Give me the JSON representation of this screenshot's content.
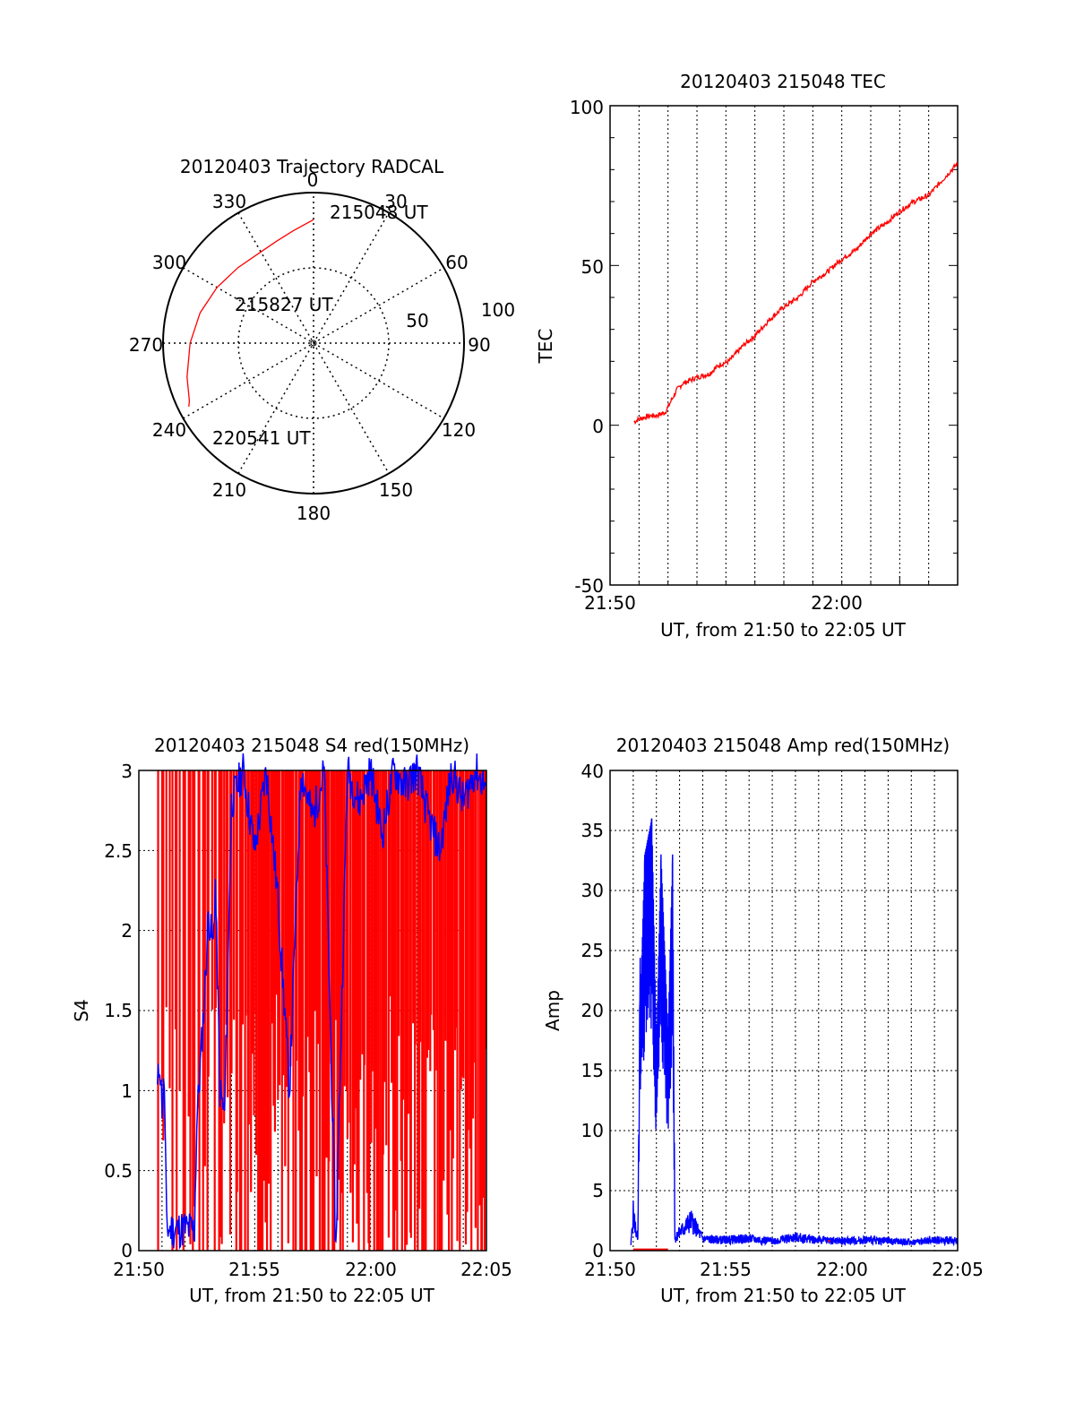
{
  "chart_data": [
    {
      "type": "polar",
      "title": "20120403 Trajectory RADCAL",
      "angle_labels": [
        "0",
        "30",
        "60",
        "90",
        "120",
        "150",
        "180",
        "210",
        "240",
        "270",
        "300",
        "330"
      ],
      "radial_labels": [
        "50",
        "100"
      ],
      "series": [
        {
          "color": "#ff0000",
          "points": [
            {
              "azimuth": 0,
              "zenith": 82
            },
            {
              "azimuth": 350,
              "zenith": 76
            },
            {
              "azimuth": 340,
              "zenith": 72
            },
            {
              "azimuth": 330,
              "zenith": 70
            },
            {
              "azimuth": 315,
              "zenith": 71
            },
            {
              "azimuth": 300,
              "zenith": 74
            },
            {
              "azimuth": 285,
              "zenith": 78
            },
            {
              "azimuth": 270,
              "zenith": 82
            },
            {
              "azimuth": 255,
              "zenith": 87
            },
            {
              "azimuth": 245,
              "zenith": 91
            },
            {
              "azimuth": 243,
              "zenith": 93
            }
          ]
        }
      ],
      "annotations": [
        {
          "text": "215048 UT",
          "azimuth": 17,
          "zenith": 82
        },
        {
          "text": "215827 UT",
          "azimuth": 318,
          "zenith": 30
        },
        {
          "text": "220541 UT",
          "azimuth": 225,
          "zenith": 80
        }
      ]
    },
    {
      "type": "line",
      "title": "20120403 215048 TEC",
      "xlabel": "UT, from 21:50 to 22:05 UT",
      "ylabel": "TEC",
      "x_ticklabels": [
        "21:50",
        "22:00"
      ],
      "y_ticklabels": [
        "-50",
        "0",
        "50",
        "100"
      ],
      "xlim_minutes": [
        0,
        12
      ],
      "ylim": [
        -50,
        100
      ],
      "grid": "vertical-dotted",
      "series": [
        {
          "color": "#ff0000",
          "x_minutes": [
            0.83,
            1.0,
            1.4,
            1.6,
            1.9,
            2.3,
            2.5,
            3.0,
            3.4,
            3.8,
            4.1,
            4.6,
            5.0,
            5.5,
            6.0,
            6.5,
            7.0,
            7.5,
            8.0,
            8.5,
            9.0,
            9.5,
            10.0,
            10.5,
            11.0,
            11.5,
            12.0
          ],
          "values": [
            1,
            2,
            3,
            3,
            4,
            11,
            13,
            15,
            16,
            19,
            20,
            25,
            28,
            33,
            37,
            40,
            45,
            48,
            52,
            55,
            60,
            63,
            67,
            70,
            72,
            77,
            82
          ]
        }
      ]
    },
    {
      "type": "line",
      "title": "20120403 215048 S4 red(150MHz)",
      "xlabel": "UT, from 21:50 to 22:05 UT",
      "ylabel": "S4",
      "x_ticklabels": [
        "21:50",
        "21:55",
        "22:00",
        "22:05"
      ],
      "y_ticklabels": [
        "0",
        "0.5",
        "1",
        "1.5",
        "2",
        "2.5",
        "3"
      ],
      "xlim_minutes": [
        0,
        15
      ],
      "ylim": [
        0,
        3
      ],
      "grid": "dotted",
      "series": [
        {
          "color": "#0000ff",
          "x_minutes": [
            0.8,
            0.9,
            1.0,
            1.1,
            1.2,
            1.5,
            2.0,
            2.4,
            2.5,
            2.8,
            3.0,
            3.2,
            3.3,
            3.5,
            3.7,
            4.0,
            4.5,
            5.0,
            5.5,
            6.0,
            6.5,
            7.0,
            7.5,
            8.0,
            8.5,
            9.0,
            9.5,
            10.0,
            10.5,
            11.0,
            11.5,
            12.0,
            12.5,
            13.0,
            13.5,
            14.0,
            14.5,
            15.0
          ],
          "values": [
            1.0,
            1.2,
            0.9,
            1.05,
            0.14,
            0.13,
            0.14,
            0.13,
            0.8,
            1.5,
            2.1,
            1.9,
            2.3,
            1.0,
            0.85,
            2.8,
            3.0,
            2.5,
            3.0,
            2.2,
            1.0,
            3.0,
            2.7,
            3.0,
            0.0,
            3.0,
            2.8,
            3.0,
            2.6,
            3.0,
            2.9,
            3.0,
            2.7,
            2.5,
            3.0,
            2.8,
            3.0,
            2.9
          ]
        },
        {
          "color": "#ff0000",
          "x_minutes": [
            0.8,
            1.5,
            2.2,
            2.8,
            3.4,
            3.9,
            4.4,
            4.8,
            5.2,
            5.6,
            6.0,
            6.4,
            6.8,
            7.2,
            7.6,
            8.0,
            8.4,
            8.8,
            9.2,
            9.6,
            10.0,
            10.4,
            10.8,
            11.2,
            11.6,
            12.0,
            12.4,
            12.8,
            13.2,
            13.6,
            14.0,
            14.4,
            14.8
          ],
          "values": [
            3.0,
            3.0,
            3.0,
            3.0,
            3.0,
            3.0,
            3.0,
            3.0,
            3.0,
            3.0,
            3.0,
            3.0,
            3.0,
            3.0,
            3.0,
            3.0,
            3.0,
            3.0,
            3.0,
            3.0,
            3.0,
            3.0,
            3.0,
            3.0,
            3.0,
            3.0,
            3.0,
            3.0,
            3.0,
            3.0,
            3.0,
            3.0,
            3.0
          ]
        }
      ]
    },
    {
      "type": "line",
      "title": "20120403 215048 Amp red(150MHz)",
      "xlabel": "UT, from 21:50 to 22:05 UT",
      "ylabel": "Amp",
      "x_ticklabels": [
        "21:50",
        "21:55",
        "22:00",
        "22:05"
      ],
      "y_ticklabels": [
        "0",
        "5",
        "10",
        "15",
        "20",
        "25",
        "30",
        "35",
        "40"
      ],
      "xlim_minutes": [
        0,
        15
      ],
      "ylim": [
        0,
        40
      ],
      "grid": "dotted",
      "series": [
        {
          "color": "#0000ff",
          "x_minutes": [
            0.9,
            1.0,
            1.2,
            1.3,
            1.5,
            1.8,
            2.0,
            2.2,
            2.5,
            2.7,
            2.8,
            3.0,
            3.5,
            4.0,
            4.5,
            5.0,
            6.0,
            7.0,
            8.0,
            9.0,
            10.0,
            11.0,
            12.0,
            13.0,
            14.0,
            15.0
          ],
          "values": [
            0.5,
            3.0,
            0.8,
            20.0,
            33.0,
            36.0,
            17.0,
            33.0,
            18.0,
            33.0,
            1.0,
            1.5,
            2.5,
            1.0,
            0.9,
            0.9,
            1.0,
            0.8,
            1.1,
            0.9,
            0.8,
            0.9,
            0.8,
            0.7,
            0.9,
            0.8
          ]
        },
        {
          "color": "#ff0000",
          "x_minutes": [
            1.0,
            2.5,
            9.4,
            9.5
          ],
          "values": [
            0.1,
            0.1,
            0.8,
            0.8
          ]
        }
      ]
    }
  ]
}
